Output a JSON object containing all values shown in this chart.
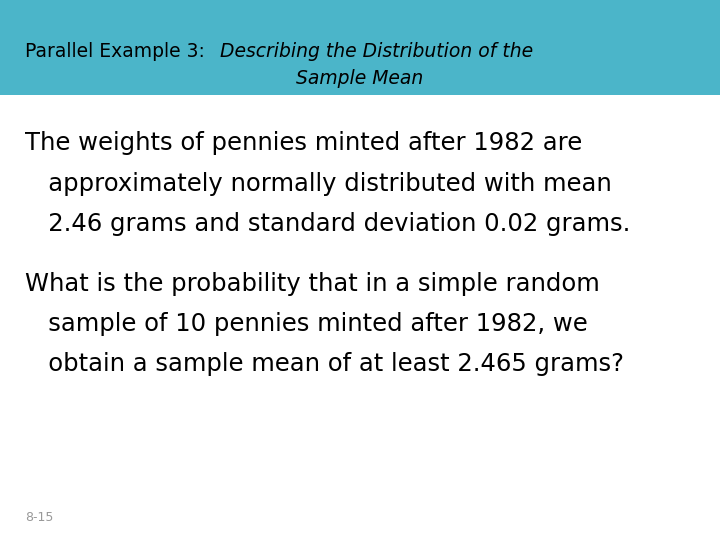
{
  "title_normal_part": "Parallel Example 3:  ",
  "title_italic_part": "Describing the Distribution of the",
  "title_line2": "Sample Mean",
  "title_bg_color": "#4bb5c9",
  "title_text_color": "#000000",
  "body_bg_color": "#ffffff",
  "paragraph1_line1": "The weights of pennies minted after 1982 are",
  "paragraph1_line2": "   approximately normally distributed with mean",
  "paragraph1_line3": "   2.46 grams and standard deviation 0.02 grams.",
  "paragraph2_line1": "What is the probability that in a simple random",
  "paragraph2_line2": "   sample of 10 pennies minted after 1982, we",
  "paragraph2_line3": "   obtain a sample mean of at least 2.465 grams?",
  "footer_text": "8-15",
  "footer_color": "#999999",
  "title_fontsize": 13.5,
  "body_fontsize": 17.5,
  "footer_fontsize": 9
}
